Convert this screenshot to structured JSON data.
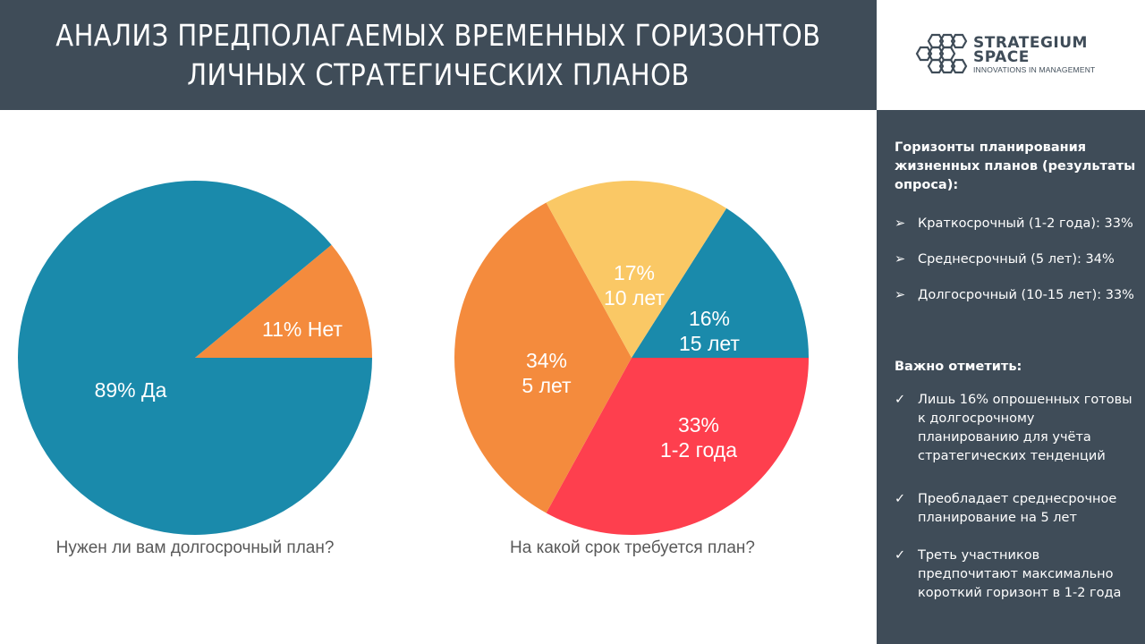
{
  "header": {
    "title_line1": "АНАЛИЗ ПРЕДПОЛАГАЕМЫХ ВРЕМЕННЫХ ГОРИЗОНТОВ",
    "title_line2": "ЛИЧНЫХ СТРАТЕГИЧЕСКИХ ПЛАНОВ"
  },
  "logo": {
    "line1": "STRATEGIUM",
    "line2": "SPACE",
    "tagline": "INNOVATIONS IN MANAGEMENT"
  },
  "sidebar": {
    "heading1": "Горизонты планирования жизненных планов (результаты опроса):",
    "bullet_marker": "➢",
    "items1": [
      "Краткосрочный (1-2 года): 33%",
      "Среднесрочный (5 лет): 34%",
      "Долгосрочный (10-15 лет): 33%"
    ],
    "heading2": "Важно отметить:",
    "check_marker": "✓",
    "items2": [
      "Лишь 16% опрошенных готовы к долгосрочному планированию для учёта стратегических тенденций",
      "Преобладает среднесрочное планирование на 5 лет",
      "Треть участников предпочитают максимально короткий горизонт в 1-2 года"
    ]
  },
  "colors": {
    "header_bg": "#3f4c58",
    "teal": "#1a8aab",
    "orange": "#f48b3d",
    "yellow": "#fac865",
    "red": "#fe3f4e"
  },
  "chart_data": [
    {
      "type": "pie",
      "title": "Нужен ли вам долгосрочный план?",
      "slices": [
        {
          "label_line1": "11% Нет",
          "label_line2": "",
          "value": 11,
          "color": "#f48b3d"
        },
        {
          "label_line1": "89% Да",
          "label_line2": "",
          "value": 89,
          "color": "#1a8aab"
        }
      ]
    },
    {
      "type": "pie",
      "title": "На какой срок требуется план?",
      "slices": [
        {
          "label_line1": "16%",
          "label_line2": "15 лет",
          "value": 16,
          "color": "#1a8aab"
        },
        {
          "label_line1": "33%",
          "label_line2": "1-2 года",
          "value": 33,
          "color": "#fe3f4e"
        },
        {
          "label_line1": "34%",
          "label_line2": "5 лет",
          "value": 34,
          "color": "#f48b3d"
        },
        {
          "label_line1": "17%",
          "label_line2": "10 лет",
          "value": 17,
          "color": "#fac865"
        }
      ]
    }
  ]
}
